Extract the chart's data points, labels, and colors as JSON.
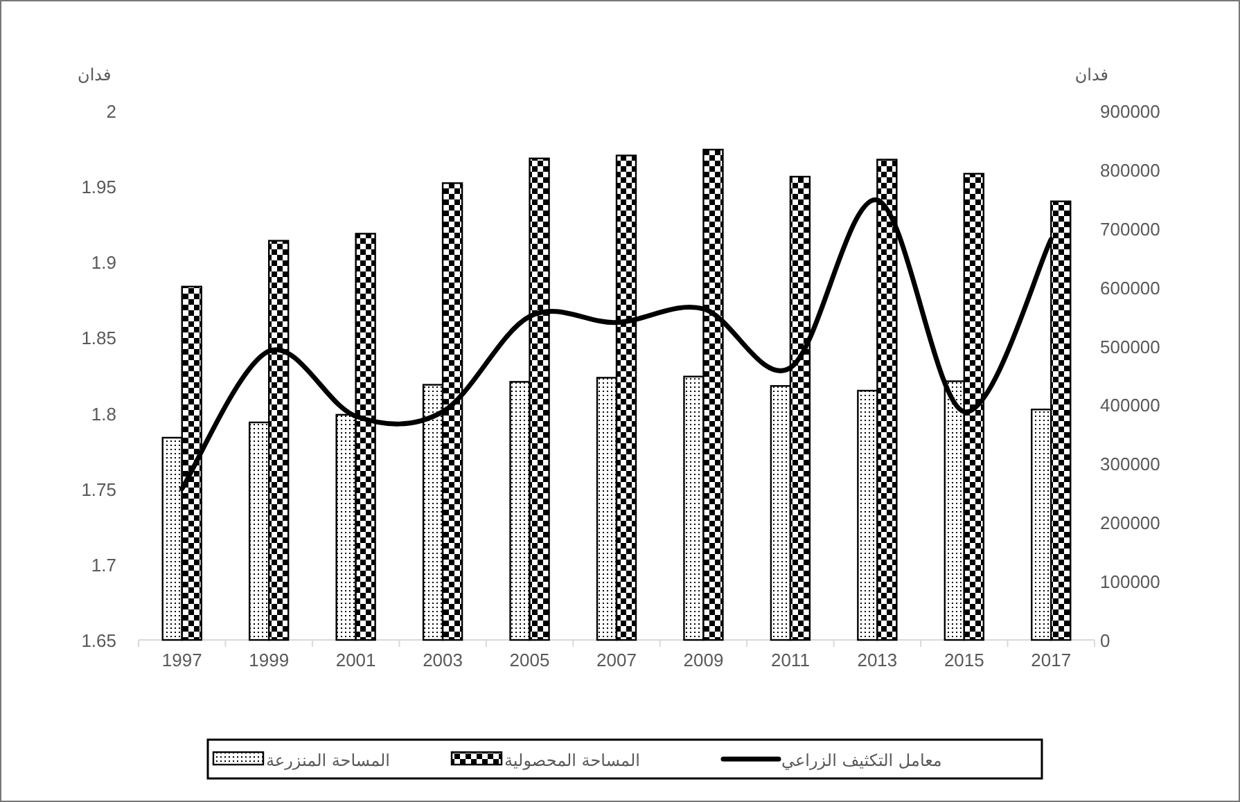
{
  "chart_data": {
    "type": "bar",
    "categories": [
      "1997",
      "1999",
      "2001",
      "2003",
      "2005",
      "2007",
      "2009",
      "2011",
      "2013",
      "2015",
      "2017"
    ],
    "ylabel": "فدان",
    "y2label": "فدان",
    "ylim": [
      1.65,
      2
    ],
    "yticks": [
      1.65,
      1.7,
      1.75,
      1.8,
      1.85,
      1.9,
      1.95,
      2
    ],
    "y2lim": [
      0,
      900000
    ],
    "y2ticks": [
      0,
      100000,
      200000,
      300000,
      400000,
      500000,
      600000,
      700000,
      800000,
      900000
    ],
    "legend": "bottom",
    "series": [
      {
        "name": "المساحة المنزرعة",
        "axis": "y2",
        "color": "#000000",
        "values": [
          344000,
          370000,
          383000,
          434000,
          439000,
          446000,
          448000,
          432000,
          424000,
          440000,
          392000
        ]
      },
      {
        "name": "المساحة المحصولية",
        "axis": "y2",
        "color": "#000000",
        "values": [
          601000,
          679000,
          691000,
          777000,
          819000,
          824000,
          834000,
          788000,
          817000,
          793000,
          746000
        ]
      },
      {
        "name": "معامل التكثيف الزراعي",
        "type": "line",
        "color": "#000000",
        "values": [
          1.75,
          1.841,
          1.798,
          1.801,
          1.864,
          1.86,
          1.869,
          1.83,
          1.941,
          1.801,
          1.915
        ]
      }
    ]
  }
}
